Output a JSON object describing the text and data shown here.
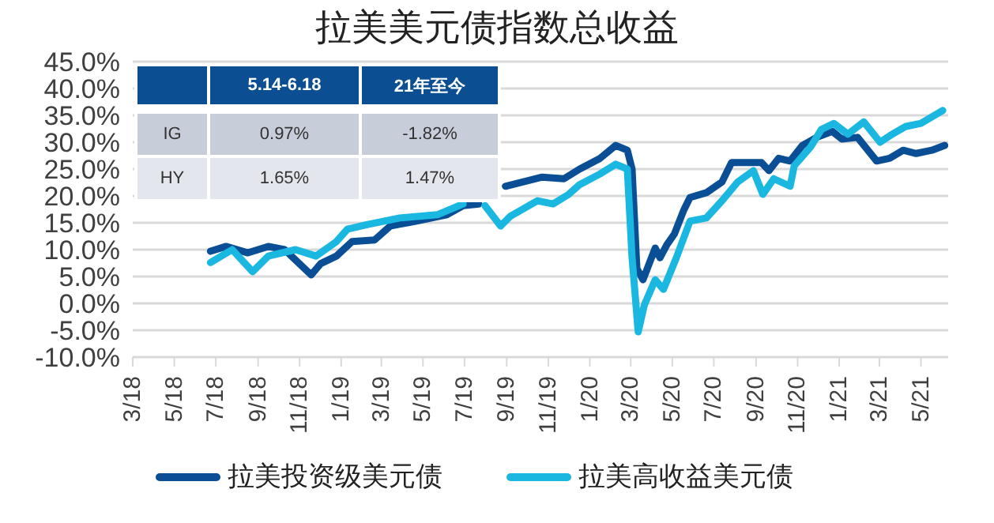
{
  "chart_data": {
    "type": "line",
    "title": "拉美美元债指数总收益",
    "annotations": [
      "5.14-6.18",
      "21年至今",
      "IG",
      "0.97%",
      "-1.82%",
      "HY",
      "1.65%",
      "1.47%"
    ],
    "series": [
      {
        "name": "拉美投资级美元债",
        "color": "#0a4f96",
        "x": [
          "2018-06-23",
          "2018-07-16",
          "2018-08-17",
          "2018-09-16",
          "2018-10-10",
          "2018-11-18",
          "2018-12-02",
          "2018-12-25",
          "2019-01-17",
          "2019-02-19",
          "2019-03-14",
          "2019-04-20",
          "2019-06-05",
          "2019-06-29",
          "2019-07-22",
          "2019-07-31",
          "2019-08-30",
          "2019-10-23",
          "2019-11-24",
          "2019-12-17",
          "2020-01-16",
          "2020-02-08",
          "2020-02-25",
          "2020-03-03",
          "2020-03-10",
          "2020-03-19",
          "2020-04-06",
          "2020-04-13",
          "2020-04-23",
          "2020-05-04",
          "2020-05-18",
          "2020-05-27",
          "2020-06-20",
          "2020-07-13",
          "2020-07-27",
          "2020-08-19",
          "2020-09-09",
          "2020-09-20",
          "2020-10-04",
          "2020-10-21",
          "2020-11-08",
          "2020-11-29",
          "2020-12-22",
          "2021-01-05",
          "2021-01-28",
          "2021-02-25",
          "2021-03-16",
          "2021-04-05",
          "2021-04-24",
          "2021-05-17",
          "2021-06-05"
        ],
        "values": [
          9.7,
          10.6,
          9.4,
          10.6,
          10,
          5.3,
          7.4,
          8.8,
          11.5,
          11.8,
          14.4,
          15.3,
          16.5,
          18.2,
          18.5,
          null,
          21.8,
          23.5,
          23.2,
          25,
          27,
          29.4,
          28.5,
          25,
          6.5,
          4.4,
          10.3,
          8.5,
          10.9,
          12.9,
          17.4,
          19.7,
          20.6,
          22.6,
          26.2,
          26.2,
          26.2,
          24.7,
          27,
          26.5,
          29.4,
          30.9,
          32,
          30.6,
          30.9,
          26.5,
          27,
          28.5,
          27.9,
          28.5,
          29.4
        ]
      },
      {
        "name": "拉美高收益美元债",
        "color": "#1ab8e0",
        "x": [
          "2018-06-23",
          "2018-07-25",
          "2018-08-24",
          "2018-09-16",
          "2018-10-26",
          "2018-11-25",
          "2018-12-25",
          "2019-01-10",
          "2019-02-09",
          "2019-03-28",
          "2019-05-22",
          "2019-06-29",
          "2019-07-15",
          "2019-07-31",
          "2019-08-23",
          "2019-09-06",
          "2019-10-16",
          "2019-11-08",
          "2019-12-01",
          "2019-12-17",
          "2020-01-16",
          "2020-02-08",
          "2020-02-25",
          "2020-03-03",
          "2020-03-12",
          "2020-03-21",
          "2020-04-06",
          "2020-04-18",
          "2020-05-07",
          "2020-05-27",
          "2020-06-20",
          "2020-07-13",
          "2020-08-05",
          "2020-08-28",
          "2020-09-11",
          "2020-09-27",
          "2020-10-21",
          "2020-10-27",
          "2020-11-20",
          "2020-12-06",
          "2020-12-24",
          "2021-01-14",
          "2021-02-06",
          "2021-03-02",
          "2021-03-20",
          "2021-04-08",
          "2021-05-01",
          "2021-06-02"
        ],
        "values": [
          7.6,
          10,
          5.9,
          8.8,
          10,
          8.8,
          11.5,
          13.8,
          14.7,
          15.9,
          16.5,
          18.5,
          null,
          18.2,
          14.4,
          16.2,
          19.1,
          18.5,
          20.3,
          22.1,
          24.1,
          25.9,
          25,
          8.5,
          -5.3,
          -0.3,
          4.4,
          2.6,
          8.5,
          15.3,
          15.9,
          19.1,
          22.6,
          24.7,
          20.3,
          23.2,
          21.8,
          25.6,
          29.1,
          32.4,
          33.5,
          31.5,
          33.8,
          30,
          31.5,
          32.9,
          33.5,
          35.9
        ]
      }
    ],
    "xlim": [
      "2018-03-01",
      "2021-06-10"
    ],
    "xticks": [
      {
        "value": "2018-03-01",
        "label": "3/18"
      },
      {
        "value": "2018-05-01",
        "label": "5/18"
      },
      {
        "value": "2018-07-01",
        "label": "7/18"
      },
      {
        "value": "2018-09-01",
        "label": "9/18"
      },
      {
        "value": "2018-11-01",
        "label": "11/18"
      },
      {
        "value": "2019-01-01",
        "label": "1/19"
      },
      {
        "value": "2019-03-01",
        "label": "3/19"
      },
      {
        "value": "2019-05-01",
        "label": "5/19"
      },
      {
        "value": "2019-07-01",
        "label": "7/19"
      },
      {
        "value": "2019-09-01",
        "label": "9/19"
      },
      {
        "value": "2019-11-01",
        "label": "11/19"
      },
      {
        "value": "2020-01-01",
        "label": "1/20"
      },
      {
        "value": "2020-03-01",
        "label": "3/20"
      },
      {
        "value": "2020-05-01",
        "label": "5/20"
      },
      {
        "value": "2020-07-01",
        "label": "7/20"
      },
      {
        "value": "2020-09-01",
        "label": "9/20"
      },
      {
        "value": "2020-11-01",
        "label": "11/20"
      },
      {
        "value": "2021-01-01",
        "label": "1/21"
      },
      {
        "value": "2021-03-01",
        "label": "3/21"
      },
      {
        "value": "2021-05-01",
        "label": "5/21"
      }
    ],
    "ylim": [
      -10,
      45
    ],
    "yticks": [
      {
        "value": -10,
        "label": "-10.0%"
      },
      {
        "value": -5,
        "label": "-5.0%"
      },
      {
        "value": 0,
        "label": "0.0%"
      },
      {
        "value": 5,
        "label": "5.0%"
      },
      {
        "value": 10,
        "label": "10.0%"
      },
      {
        "value": 15,
        "label": "15.0%"
      },
      {
        "value": 20,
        "label": "20.0%"
      },
      {
        "value": 25,
        "label": "25.0%"
      },
      {
        "value": 30,
        "label": "30.0%"
      },
      {
        "value": 35,
        "label": "35.0%"
      },
      {
        "value": 40,
        "label": "40.0%"
      },
      {
        "value": 45,
        "label": "45.0%"
      }
    ],
    "grid": "y",
    "legend": "bottom",
    "marker": "none",
    "line_style": "solid"
  }
}
